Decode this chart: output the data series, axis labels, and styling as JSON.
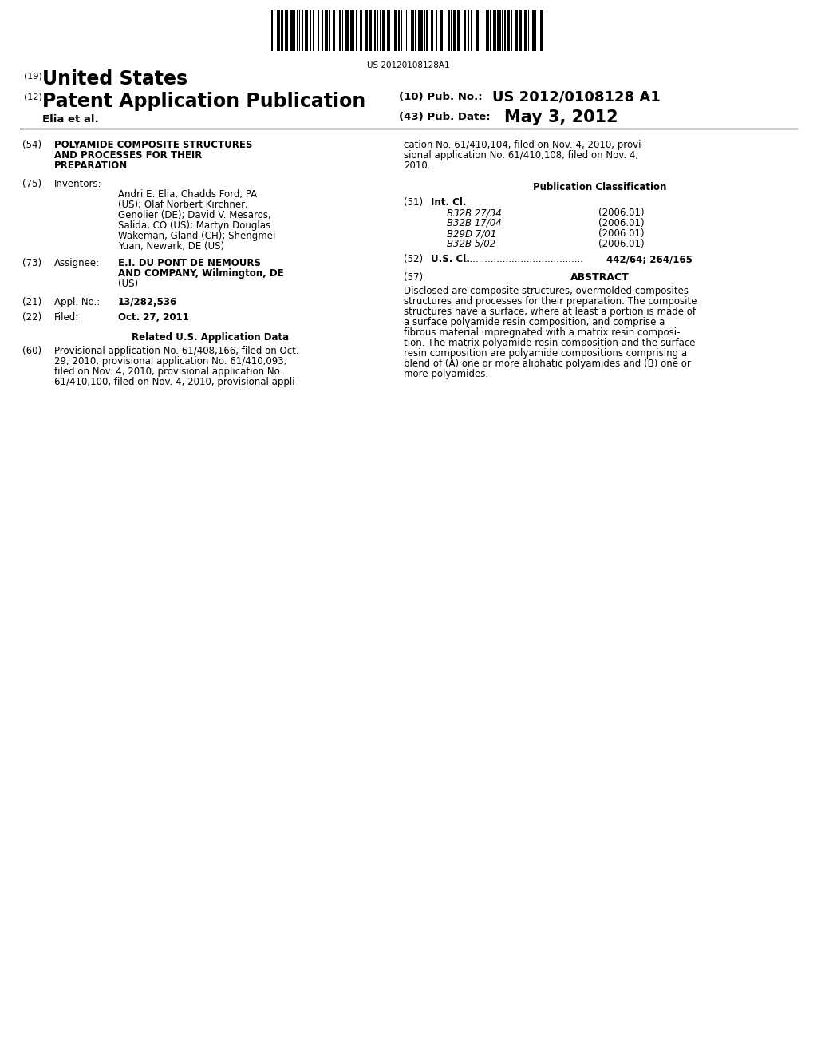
{
  "background_color": "#ffffff",
  "barcode_text": "US 20120108128A1",
  "header": {
    "country_label": "(19)",
    "country": "United States",
    "type_label": "(12)",
    "type": "Patent Application Publication",
    "author": "Elia et al.",
    "pub_no_label": "(10) Pub. No.:",
    "pub_no": "US 2012/0108128 A1",
    "pub_date_label": "(43) Pub. Date:",
    "pub_date": "May 3, 2012"
  },
  "left_column": {
    "title_label": "(54)",
    "title_lines": [
      "POLYAMIDE COMPOSITE STRUCTURES",
      "AND PROCESSES FOR THEIR",
      "PREPARATION"
    ],
    "inventors_label": "(75)",
    "inventors_key": "Inventors:",
    "inventors_lines": [
      [
        "bold",
        "Andri E. Elia",
        ", Chadds Ford, PA"
      ],
      [
        "normal",
        "(US); ",
        "Olaf Norbert Kirchner",
        ","
      ],
      [
        "normal",
        "Genolier (DE); ",
        "David V. Mesaros",
        ","
      ],
      [
        "normal",
        "Salida, CO (US); ",
        "Martyn Douglas"
      ],
      [
        "normal",
        "Wakeman",
        ", Gland (CH); ",
        "Shengmei"
      ],
      [
        "normal",
        "Yuan",
        ", Newark, DE (US)"
      ]
    ],
    "inventors_text": "Andri E. Elia, Chadds Ford, PA\n(US); Olaf Norbert Kirchner,\nGenolier (DE); David V. Mesaros,\nSalida, CO (US); Martyn Douglas\nWakeman, Gland (CH); Shengmei\nYuan, Newark, DE (US)",
    "assignee_label": "(73)",
    "assignee_key": "Assignee:",
    "assignee_text": "E.I. DU PONT DE NEMOURS\nAND COMPANY, Wilmington, DE\n(US)",
    "appl_label": "(21)",
    "appl_key": "Appl. No.:",
    "appl_value": "13/282,536",
    "filed_label": "(22)",
    "filed_key": "Filed:",
    "filed_value": "Oct. 27, 2011",
    "related_header": "Related U.S. Application Data",
    "related_label": "(60)",
    "related_lines": [
      "Provisional application No. 61/408,166, filed on Oct.",
      "29, 2010, provisional application No. 61/410,093,",
      "filed on Nov. 4, 2010, provisional application No.",
      "61/410,100, filed on Nov. 4, 2010, provisional appli-"
    ]
  },
  "right_column": {
    "continuation_lines": [
      "cation No. 61/410,104, filed on Nov. 4, 2010, provi-",
      "sional application No. 61/410,108, filed on Nov. 4,",
      "2010."
    ],
    "pub_class_header": "Publication Classification",
    "int_cl_label": "(51)",
    "int_cl_key": "Int. Cl.",
    "int_cl_entries": [
      [
        "B32B 27/34",
        "(2006.01)"
      ],
      [
        "B32B 17/04",
        "(2006.01)"
      ],
      [
        "B29D 7/01",
        "(2006.01)"
      ],
      [
        "B32B 5/02",
        "(2006.01)"
      ]
    ],
    "us_cl_label": "(52)",
    "us_cl_key": "U.S. Cl.",
    "us_cl_dots": "........................................",
    "us_cl_value": "442/64; 264/165",
    "abstract_label": "(57)",
    "abstract_header": "ABSTRACT",
    "abstract_lines": [
      "Disclosed are composite structures, overmolded composites",
      "structures and processes for their preparation. The composite",
      "structures have a surface, where at least a portion is made of",
      "a surface polyamide resin composition, and comprise a",
      "fibrous material impregnated with a matrix resin composi-",
      "tion. The matrix polyamide resin composition and the surface",
      "resin composition are polyamide compositions comprising a",
      "blend of (A) one or more aliphatic polyamides and (B) one or",
      "more polyamides."
    ]
  }
}
